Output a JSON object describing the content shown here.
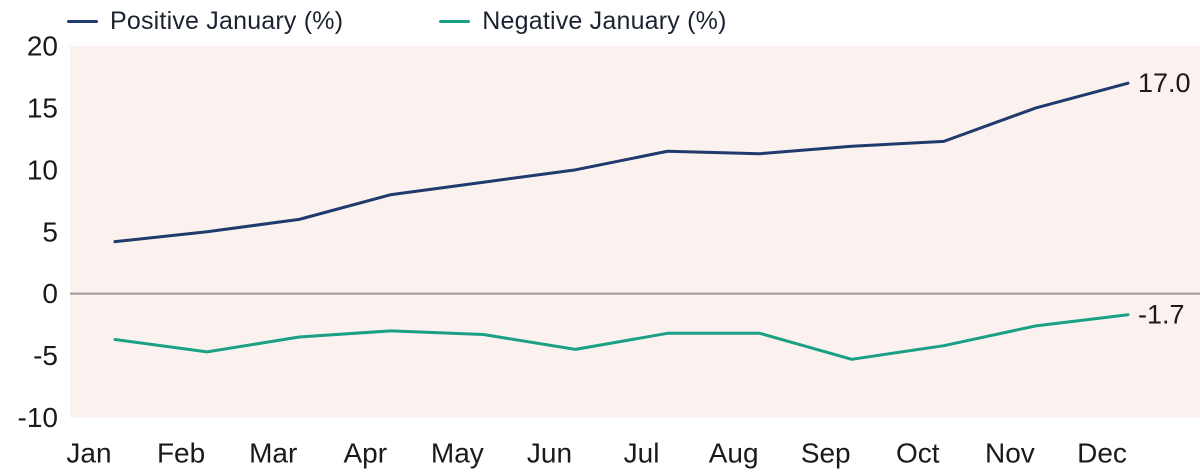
{
  "legend": {
    "items": [
      {
        "label": "Positive January (%)"
      },
      {
        "label": "Negative January (%)"
      }
    ]
  },
  "chart_data": {
    "type": "line",
    "x": [
      "Jan",
      "Feb",
      "Mar",
      "Apr",
      "May",
      "Jun",
      "Jul",
      "Aug",
      "Sep",
      "Oct",
      "Nov",
      "Dec"
    ],
    "series": [
      {
        "name": "Positive January (%)",
        "color": "#1f3a6d",
        "values": [
          4.2,
          5.0,
          6.0,
          8.0,
          9.0,
          10.0,
          11.5,
          11.3,
          11.9,
          12.3,
          15.0,
          17.0
        ],
        "end_label": "17.0"
      },
      {
        "name": "Negative January (%)",
        "color": "#1aa084",
        "values": [
          -3.7,
          -4.7,
          -3.5,
          -3.0,
          -3.3,
          -4.5,
          -3.2,
          -3.2,
          -5.3,
          -4.2,
          -2.6,
          -1.7
        ],
        "end_label": "-1.7"
      }
    ],
    "y_ticks": [
      20,
      15,
      10,
      5,
      0,
      -5,
      -10
    ],
    "ylim": [
      -10,
      20
    ],
    "title": "",
    "xlabel": "",
    "ylabel": "",
    "grid": "zero-line-only",
    "legend_position": "top",
    "plot_bg": "#fbf1ef",
    "zero_line_color": "#9b9b9b",
    "text_color": "#1a1a1a"
  }
}
